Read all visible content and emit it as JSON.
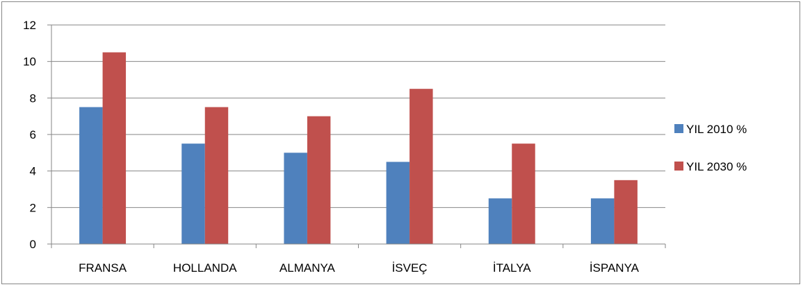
{
  "chart_data": {
    "type": "bar",
    "categories": [
      "FRANSA",
      "HOLLANDA",
      "ALMANYA",
      "İSVEÇ",
      "İTALYA",
      "İSPANYA"
    ],
    "series": [
      {
        "name": "YIL 2010 %",
        "color": "#4F81BD",
        "values": [
          7.5,
          5.5,
          5.0,
          4.5,
          2.5,
          2.5
        ]
      },
      {
        "name": "YIL 2030 %",
        "color": "#C0504D",
        "values": [
          10.5,
          7.5,
          7.0,
          8.5,
          5.5,
          3.5
        ]
      }
    ],
    "title": "",
    "xlabel": "",
    "ylabel": "",
    "ylim": [
      0,
      12
    ],
    "yticks": [
      "0",
      "2",
      "4",
      "6",
      "8",
      "10",
      "12"
    ],
    "grid": true,
    "legend_position": "right"
  }
}
